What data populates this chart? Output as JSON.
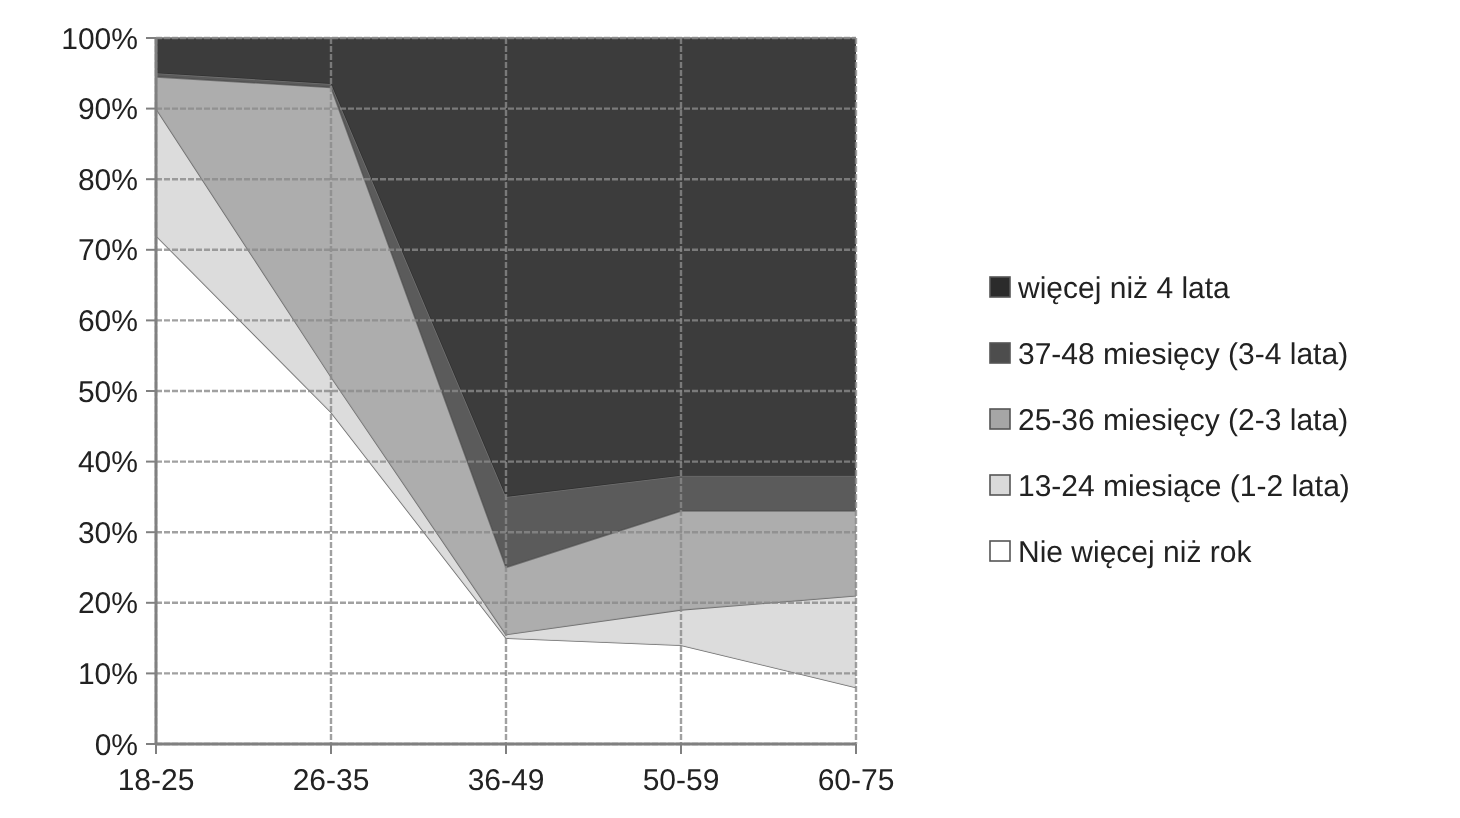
{
  "chart_data": {
    "type": "area",
    "stacked": true,
    "categories": [
      "18-25",
      "26-35",
      "36-49",
      "50-59",
      "60-75"
    ],
    "series": [
      {
        "name": "Nie więcej niż rok",
        "color": "#ffffff",
        "values": [
          72,
          47,
          15,
          14,
          8
        ]
      },
      {
        "name": "13-24 miesiące (1-2 lata)",
        "color": "#d9d9d9",
        "values": [
          18,
          5,
          0.5,
          5,
          13
        ]
      },
      {
        "name": "25-36 miesięcy (2-3 lata)",
        "color": "#a6a6a6",
        "values": [
          4.5,
          41,
          9.5,
          14,
          12
        ]
      },
      {
        "name": "37-48 miesięcy (3-4 lata)",
        "color": "#4d4d4d",
        "values": [
          0.5,
          0.5,
          10,
          5,
          5
        ]
      },
      {
        "name": "więcej niż 4 lata",
        "color": "#2b2b2b",
        "values": [
          5,
          6.5,
          65,
          62,
          62
        ]
      }
    ],
    "ylim": [
      0,
      100
    ],
    "yticks": [
      {
        "value": 0,
        "label": "0%"
      },
      {
        "value": 10,
        "label": "10%"
      },
      {
        "value": 20,
        "label": "20%"
      },
      {
        "value": 30,
        "label": "30%"
      },
      {
        "value": 40,
        "label": "40%"
      },
      {
        "value": 50,
        "label": "50%"
      },
      {
        "value": 60,
        "label": "60%"
      },
      {
        "value": 70,
        "label": "70%"
      },
      {
        "value": 80,
        "label": "80%"
      },
      {
        "value": 90,
        "label": "90%"
      },
      {
        "value": 100,
        "label": "100%"
      }
    ],
    "grid": true,
    "legend": "right"
  }
}
